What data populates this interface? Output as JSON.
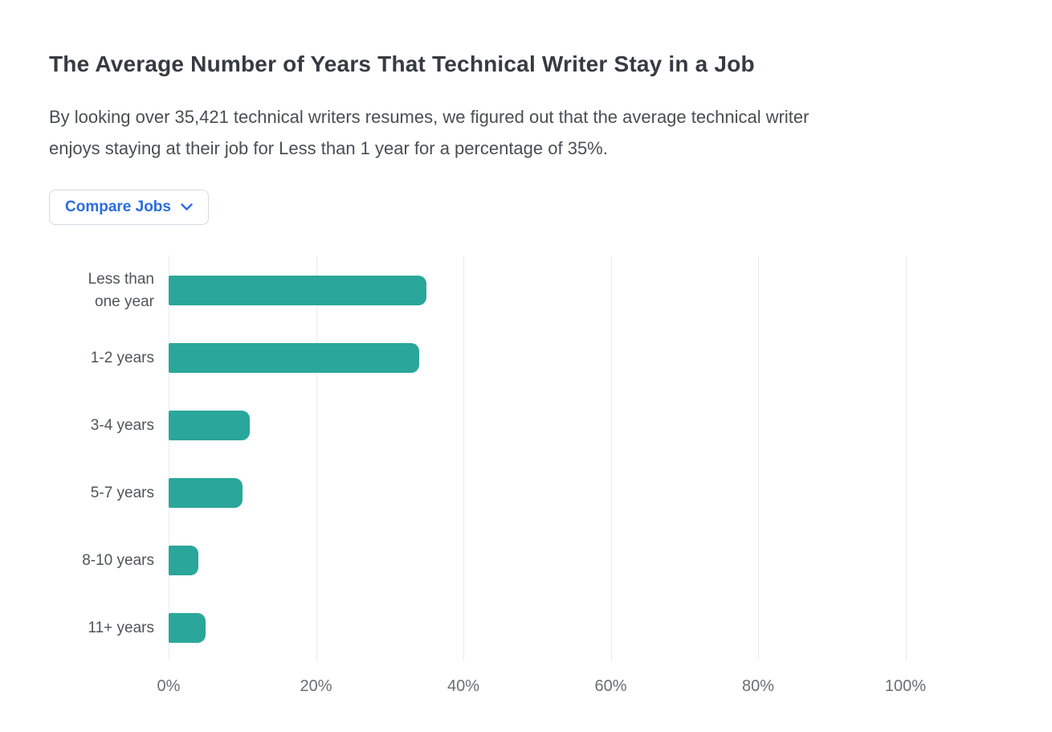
{
  "page": {
    "title": "The Average Number of Years That Technical Writer Stay in a Job",
    "subtitle_line1": "By looking over 35,421 technical writers resumes, we figured out that the average technical writer",
    "subtitle_line2": "enjoys staying at their job for Less than 1 year for a percentage of 35%.",
    "compare_button": {
      "label": "Compare Jobs",
      "icon": "chevron-down-icon"
    }
  },
  "colors": {
    "bar": "#2aa69a",
    "title_text": "#363b42",
    "body_text": "#4a4e53",
    "category_label": "#50545a",
    "tick_label": "#6a6e72",
    "gridline": "#e9eaec",
    "button_text": "#2b6ce0",
    "button_border": "#d6dbe3"
  },
  "chart_data": {
    "type": "bar",
    "orientation": "horizontal",
    "title": "The Average Number of Years That Technical Writer Stay in a Job",
    "categories": [
      "Less than\none year",
      "1-2 years",
      "3-4 years",
      "5-7 years",
      "8-10 years",
      "11+ years"
    ],
    "values": [
      35,
      34,
      11,
      10,
      4,
      5
    ],
    "unit": "%",
    "x_ticks": [
      "0%",
      "20%",
      "40%",
      "60%",
      "80%",
      "100%"
    ],
    "xlim": [
      0,
      100
    ],
    "xlabel": "",
    "ylabel": "",
    "grid": "vertical",
    "legend": "none"
  }
}
